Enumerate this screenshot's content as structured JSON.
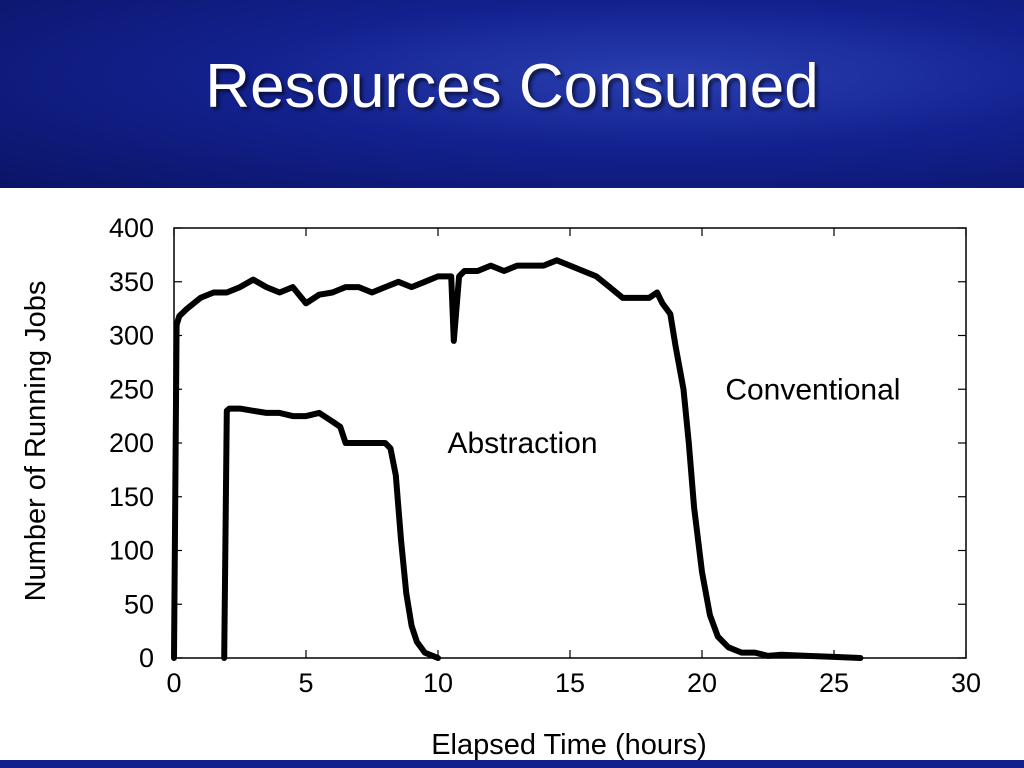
{
  "slide": {
    "title": "Resources Consumed",
    "header_color": "#13218f",
    "title_color": "#ffffff"
  },
  "chart_data": {
    "type": "line",
    "title": "",
    "xlabel": "Elapsed Time (hours)",
    "ylabel": "Number of Running Jobs",
    "xlim": [
      0,
      30
    ],
    "ylim": [
      0,
      400
    ],
    "x_ticks": [
      0,
      5,
      10,
      15,
      20,
      25,
      30
    ],
    "y_ticks": [
      0,
      50,
      100,
      150,
      200,
      250,
      300,
      350,
      400
    ],
    "grid": false,
    "legend": "none",
    "annotations": [
      {
        "text": "Conventional",
        "x": 24.2,
        "y": 250
      },
      {
        "text": "Abstraction",
        "x": 13.2,
        "y": 200
      }
    ],
    "series": [
      {
        "color": "#000000",
        "x": [
          0,
          0.1,
          0.2,
          0.5,
          1,
          1.5,
          2,
          2.5,
          3,
          3.5,
          4,
          4.5,
          5,
          5.5,
          6,
          6.5,
          7,
          7.5,
          8,
          8.5,
          9,
          9.5,
          10,
          10.3,
          10.5,
          10.6,
          10.8,
          11,
          11.5,
          12,
          12.5,
          13,
          13.5,
          14,
          14.5,
          15,
          15.5,
          16,
          16.5,
          17,
          17.5,
          18,
          18.3,
          18.5,
          18.8,
          19,
          19.3,
          19.5,
          19.7,
          20,
          20.3,
          20.6,
          21,
          21.5,
          22,
          22.5,
          23,
          24,
          25,
          26
        ],
        "y": [
          0,
          310,
          318,
          325,
          335,
          340,
          340,
          345,
          352,
          345,
          340,
          345,
          330,
          338,
          340,
          345,
          345,
          340,
          345,
          350,
          345,
          350,
          355,
          355,
          355,
          295,
          355,
          360,
          360,
          365,
          360,
          365,
          365,
          365,
          370,
          365,
          360,
          355,
          345,
          335,
          335,
          335,
          340,
          330,
          320,
          290,
          250,
          200,
          140,
          80,
          40,
          20,
          10,
          5,
          5,
          2,
          3,
          2,
          1,
          0
        ]
      },
      {
        "color": "#000000",
        "x": [
          1.9,
          2.0,
          2.1,
          2.5,
          3,
          3.5,
          4,
          4.5,
          5,
          5.5,
          6,
          6.3,
          6.5,
          7,
          7.5,
          8,
          8.2,
          8.4,
          8.6,
          8.8,
          9.0,
          9.2,
          9.5,
          9.8,
          10.0
        ],
        "y": [
          0,
          230,
          232,
          232,
          230,
          228,
          228,
          225,
          225,
          228,
          220,
          215,
          200,
          200,
          200,
          200,
          195,
          170,
          110,
          60,
          30,
          15,
          5,
          2,
          0
        ]
      }
    ]
  }
}
